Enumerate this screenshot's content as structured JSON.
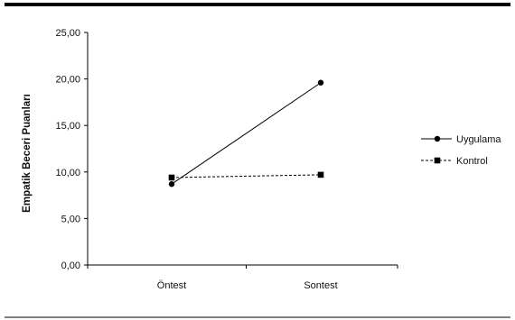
{
  "chart_data": {
    "type": "line",
    "title": "",
    "xlabel": "",
    "ylabel": "Empatik Beceri Puanları",
    "categories": [
      "Öntest",
      "Sontest"
    ],
    "ylim": [
      0,
      25
    ],
    "yticks": [
      "0,00",
      "5,00",
      "10,00",
      "15,00",
      "20,00",
      "25,00"
    ],
    "grid": false,
    "legend_position": "right",
    "series": [
      {
        "name": "Uygulama",
        "values": [
          8.7,
          19.6
        ],
        "marker": "circle",
        "line": "solid",
        "color": "#000000"
      },
      {
        "name": "Kontrol",
        "values": [
          9.4,
          9.7
        ],
        "marker": "square",
        "line": "dashed",
        "color": "#000000"
      }
    ]
  }
}
